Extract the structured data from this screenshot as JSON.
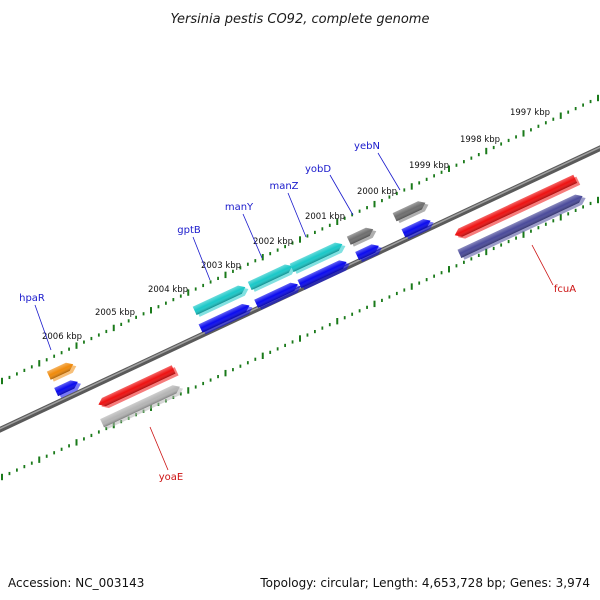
{
  "title": "Yersinia pestis CO92, complete genome",
  "footer": {
    "accession": "Accession: NC_003143",
    "summary": "Topology: circular; Length: 4,653,728 bp; Genes: 3,974"
  },
  "colors": {
    "backbone": "#777777",
    "ticks": "#1a7a1a",
    "label_forward": "#1a1acc",
    "label_reverse": "#cc1111"
  },
  "kbp_labels": [
    "2006 kbp",
    "2005 kbp",
    "2004 kbp",
    "2003 kbp",
    "2002 kbp",
    "2001 kbp",
    "2000 kbp",
    "1999 kbp",
    "1998 kbp",
    "1997 kbp"
  ],
  "genes": [
    {
      "id": "hpaR",
      "label": "hpaR",
      "strand": "forward"
    },
    {
      "id": "gptB",
      "label": "gptB",
      "strand": "forward"
    },
    {
      "id": "manY",
      "label": "manY",
      "strand": "forward"
    },
    {
      "id": "manZ",
      "label": "manZ",
      "strand": "forward"
    },
    {
      "id": "yobD",
      "label": "yobD",
      "strand": "forward"
    },
    {
      "id": "yebN",
      "label": "yebN",
      "strand": "forward"
    },
    {
      "id": "yoaE",
      "label": "yoaE",
      "strand": "reverse"
    },
    {
      "id": "fcuA",
      "label": "fcuA",
      "strand": "reverse"
    }
  ],
  "feature_colors": {
    "orange": "#f08a0a",
    "cyan": "#19c8c8",
    "gray": "#6e6e6e",
    "red": "#ee1111",
    "silver": "#b4b4b4",
    "navy": "#4a4a9a",
    "blue": "#0a0aee"
  }
}
